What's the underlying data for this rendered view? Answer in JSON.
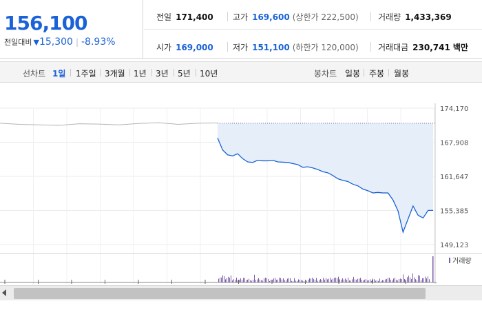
{
  "summary": {
    "price": "156,100",
    "change_label": "전일대비",
    "change_arrow": "▼",
    "change_amount": "15,300",
    "change_rate": "-8.93%",
    "prev_close": {
      "label": "전일",
      "value": "171,400"
    },
    "high": {
      "label": "고가",
      "value": "169,600",
      "extra": "(상한가 222,500)"
    },
    "volume": {
      "label": "거래량",
      "value": "1,433,369"
    },
    "open": {
      "label": "시가",
      "value": "169,000"
    },
    "low": {
      "label": "저가",
      "value": "151,100",
      "extra": "(하한가 120,000)"
    },
    "trade_value": {
      "label": "거래대금",
      "value": "230,741",
      "unit": "백만"
    }
  },
  "line_chart": {
    "label": "선차트",
    "periods": [
      "1일",
      "1주일",
      "3개월",
      "1년",
      "3년",
      "5년",
      "10년"
    ],
    "active": "1일"
  },
  "candle_chart": {
    "label": "봉차트",
    "periods": [
      "일봉",
      "주봉",
      "월봉"
    ]
  },
  "chart_data": {
    "type": "line",
    "ylabels": [
      "174,170",
      "167,908",
      "161,647",
      "155,385",
      "149,123"
    ],
    "ylim": [
      149123,
      174170
    ],
    "prev_close_line": 171400,
    "series": [
      {
        "values": [
          171400,
          171200,
          171100,
          171000,
          171300,
          171250,
          171100,
          171350,
          171500,
          171200,
          171400,
          171450
        ]
      },
      {
        "values": [
          168700,
          166500,
          165600,
          165400,
          165800,
          164900,
          164300,
          164200,
          164600,
          164500,
          164500,
          164600,
          164300,
          164250,
          164200,
          164000,
          163800,
          163300,
          163400,
          163200,
          162900,
          162500,
          162300,
          161800,
          161200,
          160900,
          160700,
          160200,
          159900,
          159300,
          159000,
          158600,
          158700,
          158600,
          158600,
          157300,
          155300,
          151400,
          153800,
          156200,
          154500,
          154000,
          155400,
          155400
        ]
      }
    ],
    "volume_label": "거래량"
  },
  "colors": {
    "up_line": "#b4b4b4",
    "down_line": "#1a62d6",
    "area_fill": "#e5eef9",
    "volume_bar": "#7b5ca8"
  }
}
